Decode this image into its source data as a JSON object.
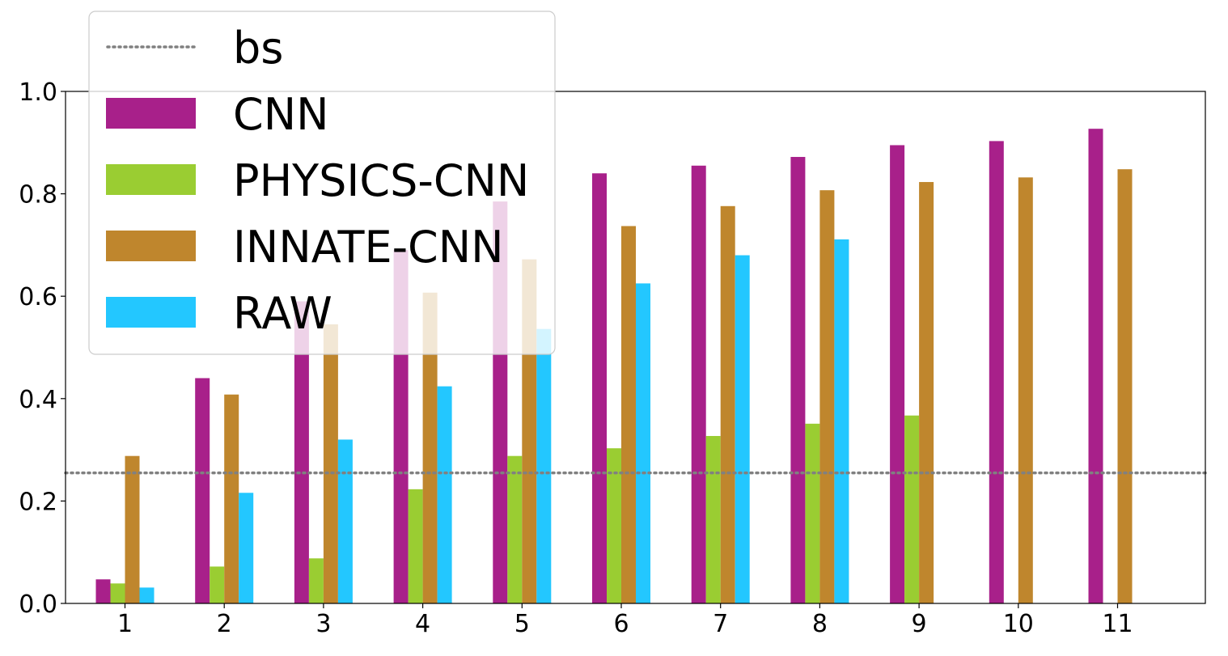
{
  "chart_data": {
    "type": "bar",
    "title": "",
    "xlabel": "",
    "ylabel": "",
    "categories": [
      "1",
      "2",
      "3",
      "4",
      "5",
      "6",
      "7",
      "8",
      "9",
      "10",
      "11"
    ],
    "ylim": [
      0,
      1.0
    ],
    "yticks": [
      "0.0",
      "0.2",
      "0.4",
      "0.6",
      "0.8",
      "1.0"
    ],
    "grid": false,
    "legend_position": "top-left",
    "series": [
      {
        "name": "CNN",
        "color": "#A8208A",
        "values": [
          0.047,
          0.44,
          0.59,
          0.69,
          0.785,
          0.84,
          0.855,
          0.872,
          0.895,
          0.903,
          0.927
        ]
      },
      {
        "name": "PHYSICS-CNN",
        "color": "#9ACD32",
        "values": [
          0.039,
          0.072,
          0.088,
          0.223,
          0.288,
          0.303,
          0.327,
          0.351,
          0.367,
          null,
          null
        ]
      },
      {
        "name": "INNATE-CNN",
        "color": "#BF862D",
        "values": [
          0.288,
          0.408,
          0.545,
          0.607,
          0.672,
          0.737,
          0.776,
          0.807,
          0.823,
          0.832,
          0.848
        ]
      },
      {
        "name": "RAW",
        "color": "#23C7FF",
        "values": [
          0.031,
          0.216,
          0.32,
          0.424,
          0.536,
          0.625,
          0.68,
          0.711,
          null,
          null,
          null
        ]
      }
    ],
    "baseline": {
      "name": "bs",
      "value": 0.255,
      "color": "#808080",
      "style": "dotted"
    }
  }
}
